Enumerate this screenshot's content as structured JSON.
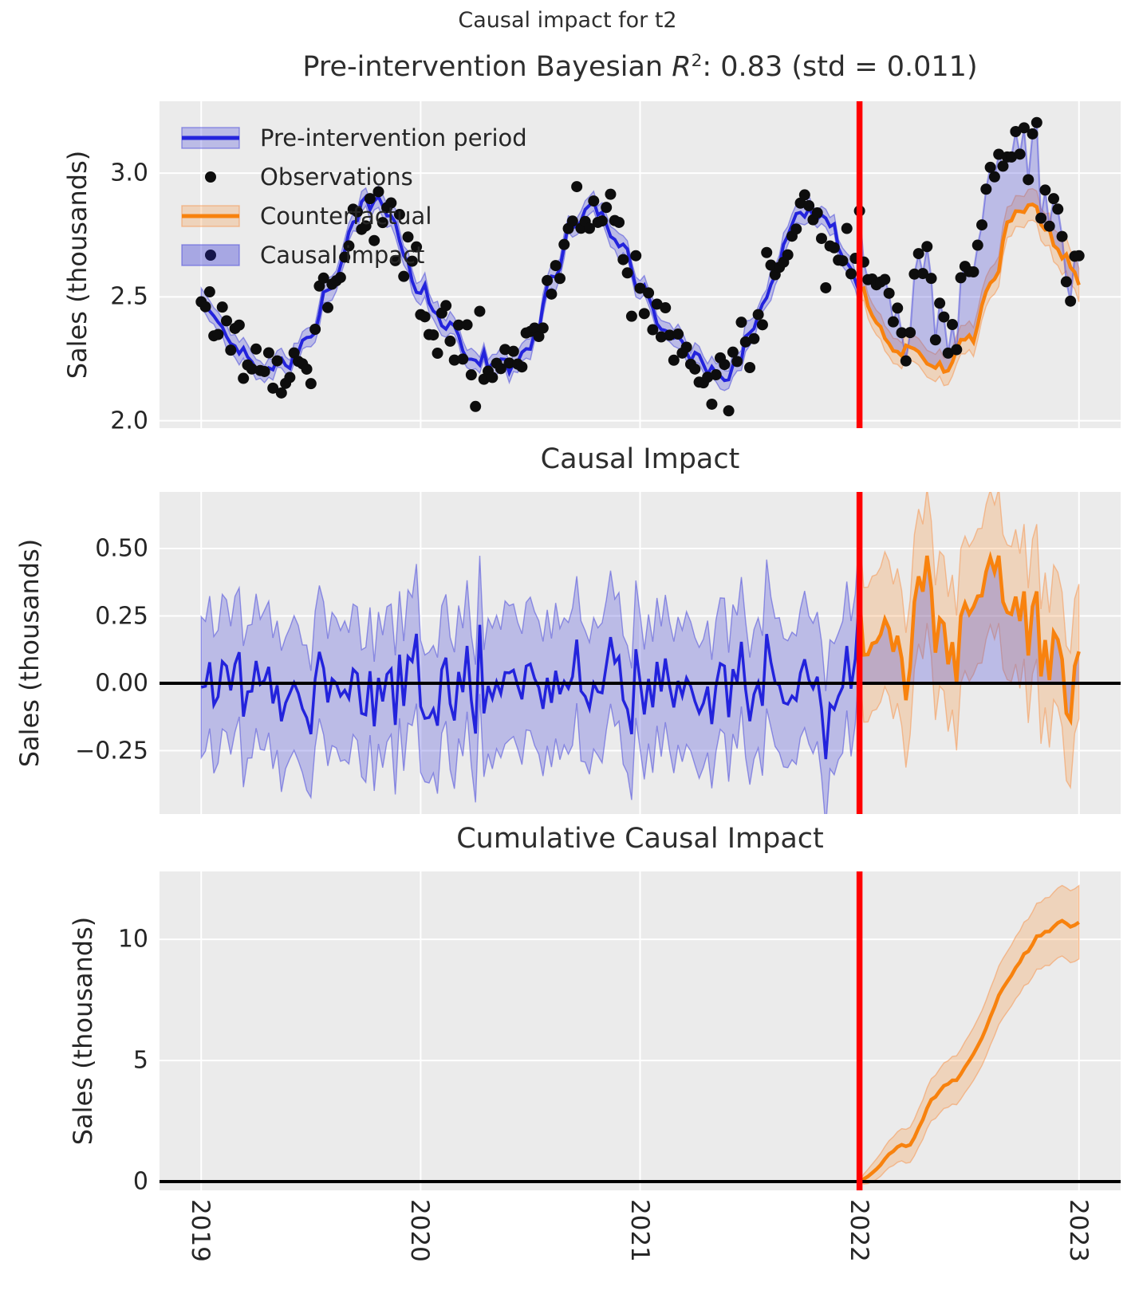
{
  "figure": {
    "suptitle": "Causal impact for t2",
    "target_series": "t2",
    "background": "#ffffff",
    "panel_background": "#ebebeb",
    "grid_color": "#ffffff",
    "text_color": "#262626",
    "colors": {
      "pre_intervention_line": "#2323dc",
      "post_observation_line": "rgba(70,70,220,0.5)",
      "blue_fill": "rgba(75,75,218,0.30)",
      "blue_fill_edge": "rgba(75,75,218,0.55)",
      "counterfactual_line": "#f8820e",
      "orange_fill": "rgba(248,138,45,0.25)",
      "orange_fill_edge": "rgba(246,150,80,0.55)",
      "observations": "#0d0d0d",
      "intervention_line": "#ff0000",
      "zero_line": "#000000",
      "legend_impact_fill": "rgba(75,75,218,0.42)",
      "legend_impact_dot": "#16164a"
    }
  },
  "chart_data": {
    "type": "line",
    "stats": {
      "bayesian_r2": 0.83,
      "r2_std": 0.011
    },
    "x": {
      "start": 2019.0,
      "end": 2023.0,
      "points_per_year": 52,
      "xlim": [
        2018.81,
        2023.19
      ],
      "ticks": [
        2019,
        2020,
        2021,
        2022,
        2023
      ],
      "tick_labels": [
        "2019",
        "2020",
        "2021",
        "2022",
        "2023"
      ],
      "intervention": 2022.0
    },
    "panels": [
      {
        "title": "Pre-intervention Bayesian R²: 0.83 (std = 0.011)",
        "title_parts": {
          "prefix": "Pre-intervention Bayesian ",
          "symbol": "R",
          "superscript": "2",
          "suffix": ": 0.83 (std = 0.011)"
        },
        "ylabel": "Sales (thousands)",
        "ylim": [
          1.97,
          3.29
        ],
        "yticks": [
          2.0,
          2.5,
          3.0
        ],
        "ytick_labels": [
          "2.0",
          "2.5",
          "3.0"
        ],
        "legend": [
          {
            "swatch": "blue-band-line",
            "label": "Pre-intervention period"
          },
          {
            "swatch": "black-dot",
            "label": "Observations"
          },
          {
            "swatch": "orange-band-line",
            "label": "Counterfactual"
          },
          {
            "swatch": "blue-fill-dot",
            "label": "Causal impact"
          }
        ]
      },
      {
        "title": "Causal Impact",
        "ylabel": "Sales (thousands)",
        "ylim": [
          -0.485,
          0.71
        ],
        "yticks": [
          -0.25,
          0.0,
          0.25,
          0.5
        ],
        "ytick_labels": [
          "−0.25",
          "0.00",
          "0.25",
          "0.50"
        ]
      },
      {
        "title": "Cumulative Causal Impact",
        "ylabel": "Sales (thousands)",
        "ylim": [
          -0.36,
          12.8
        ],
        "yticks": [
          0,
          5,
          10
        ],
        "ytick_labels": [
          "0",
          "5",
          "10"
        ],
        "final_value": 10.7,
        "final_interval": [
          9.2,
          12.2
        ]
      }
    ],
    "model": {
      "seasonal_mean_keypoints": {
        "frac": [
          0.0,
          0.1,
          0.2,
          0.3,
          0.4,
          0.5,
          0.6,
          0.7,
          0.78,
          0.86,
          0.93,
          1.0
        ],
        "value": [
          2.52,
          2.36,
          2.28,
          2.22,
          2.2,
          2.32,
          2.56,
          2.8,
          2.87,
          2.78,
          2.66,
          2.52
        ]
      },
      "effect_profile_keypoints": {
        "frac": [
          0.0,
          0.1,
          0.3,
          0.5,
          0.7,
          0.85,
          0.96,
          1.0
        ],
        "value": [
          0.1,
          0.2,
          0.22,
          0.23,
          0.27,
          0.2,
          0.02,
          0.13
        ]
      },
      "post_cumulative_total": 10.7,
      "noise": {
        "seed": 11,
        "obs_sd": 0.072,
        "fit_ar": 0.55,
        "fit_sd": 0.022,
        "fit_band": 0.032,
        "cf_ar": 0.5,
        "cf_sd": 0.018,
        "cf_band": 0.048,
        "effect_ar": 0.25,
        "effect_sd": 0.115,
        "impact_band_pre": 0.235,
        "impact_band_post": 0.25,
        "cum_band_coef": 0.21
      }
    }
  }
}
